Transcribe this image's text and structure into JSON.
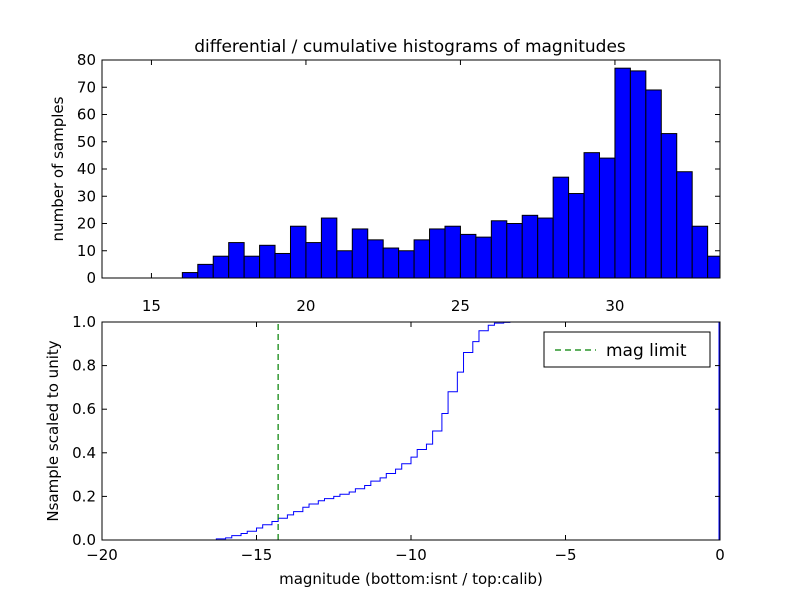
{
  "chart_data": [
    {
      "type": "bar",
      "title": "differential / cumulative histograms of magnitudes",
      "xlabel": "",
      "ylabel": "number of samples",
      "xlim": [
        13.4,
        33.4
      ],
      "ylim": [
        0,
        80
      ],
      "xticks": [
        15,
        20,
        25,
        30
      ],
      "yticks": [
        0,
        10,
        20,
        30,
        40,
        50,
        60,
        70,
        80
      ],
      "grid": false,
      "bin_edges": [
        16.0,
        16.5,
        17.0,
        17.5,
        18.0,
        18.5,
        19.0,
        19.5,
        20.0,
        20.5,
        21.0,
        21.5,
        22.0,
        22.5,
        23.0,
        23.5,
        24.0,
        24.5,
        25.0,
        25.5,
        26.0,
        26.5,
        27.0,
        27.5,
        28.0,
        28.5,
        29.0,
        29.5,
        30.0,
        30.5,
        31.0,
        31.5,
        32.0,
        32.5,
        33.0,
        33.4
      ],
      "values": [
        2,
        5,
        8,
        13,
        8,
        12,
        9,
        19,
        13,
        22,
        10,
        18,
        14,
        11,
        10,
        14,
        18,
        19,
        16,
        15,
        21,
        20,
        23,
        22,
        37,
        31,
        46,
        44,
        77,
        76,
        69,
        53,
        39,
        19,
        8
      ],
      "color": "#0000ff"
    },
    {
      "type": "line",
      "title": "",
      "xlabel": "magnitude (bottom:isnt / top:calib)",
      "ylabel": "Nsample scaled to unity",
      "xlim": [
        -20,
        0
      ],
      "ylim": [
        0.0,
        1.0
      ],
      "xticks": [
        -20,
        -15,
        -10,
        -5,
        0
      ],
      "yticks": [
        0.0,
        0.2,
        0.4,
        0.6,
        0.8,
        1.0
      ],
      "grid": false,
      "legend_position": "top-right",
      "series": [
        {
          "name": "",
          "style": "step",
          "color": "#0000ff",
          "x": [
            -20.0,
            -16.8,
            -16.3,
            -16.0,
            -15.8,
            -15.5,
            -15.3,
            -15.0,
            -14.8,
            -14.5,
            -14.3,
            -14.0,
            -13.8,
            -13.5,
            -13.3,
            -13.0,
            -12.8,
            -12.5,
            -12.3,
            -12.0,
            -11.8,
            -11.5,
            -11.3,
            -11.0,
            -10.8,
            -10.5,
            -10.3,
            -10.0,
            -9.8,
            -9.5,
            -9.3,
            -9.0,
            -8.8,
            -8.5,
            -8.3,
            -8.0,
            -7.8,
            -7.5,
            -7.3,
            -7.0,
            -6.8
          ],
          "y": [
            0.0,
            0.0,
            0.005,
            0.01,
            0.02,
            0.03,
            0.04,
            0.055,
            0.07,
            0.085,
            0.1,
            0.115,
            0.13,
            0.15,
            0.165,
            0.18,
            0.19,
            0.2,
            0.21,
            0.22,
            0.235,
            0.25,
            0.27,
            0.285,
            0.305,
            0.325,
            0.35,
            0.38,
            0.415,
            0.44,
            0.5,
            0.58,
            0.68,
            0.77,
            0.86,
            0.91,
            0.96,
            0.985,
            0.995,
            0.998,
            1.0
          ]
        },
        {
          "name": "mag limit",
          "style": "dashed",
          "color": "#008000",
          "x": [
            -14.3,
            -14.3
          ],
          "y": [
            0.0,
            1.0
          ]
        }
      ]
    }
  ]
}
